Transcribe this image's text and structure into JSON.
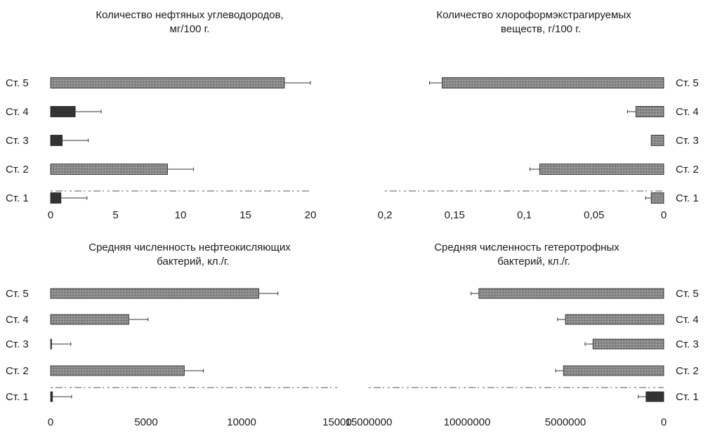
{
  "colors": {
    "bar_light": "#8c8c8c",
    "bar_dark": "#333333",
    "text": "#1a1a1a"
  },
  "chart_data": [
    {
      "type": "bar",
      "orientation": "horizontal",
      "title": "Количество нефтяных углеводородов, мг/100 г.",
      "categories": [
        "Ст. 1",
        "Ст. 2",
        "Ст. 3",
        "Ст. 4",
        "Ст. 5"
      ],
      "values": [
        0.8,
        9,
        0.9,
        1.9,
        18
      ],
      "errors": [
        2,
        2,
        2,
        2,
        2
      ],
      "xlim": [
        0,
        20
      ],
      "xticks": [
        0,
        5,
        10,
        15,
        20
      ],
      "xtick_labels": [
        "0",
        "5",
        "10",
        "15",
        "20"
      ],
      "direction": "left-to-right",
      "category_labels_side": "left"
    },
    {
      "type": "bar",
      "orientation": "horizontal",
      "title": "Количество хлороформэкстрагируемых веществ, г/100 г.",
      "categories": [
        "Ст. 1",
        "Ст. 2",
        "Ст. 3",
        "Ст. 4",
        "Ст. 5"
      ],
      "values": [
        0.009,
        0.089,
        0.009,
        0.02,
        0.159
      ],
      "errors": [
        0.004,
        0.007,
        0,
        0.006,
        0.009
      ],
      "xlim": [
        0,
        0.2
      ],
      "xticks": [
        0.2,
        0.15,
        0.1,
        0.05,
        0
      ],
      "xtick_labels": [
        "0,2",
        "0,15",
        "0,1",
        "0,05",
        "0"
      ],
      "direction": "right-to-left",
      "category_labels_side": "right"
    },
    {
      "type": "bar",
      "orientation": "horizontal",
      "title": "Средняя численность нефтеокисляющих бактерий, кл./г.",
      "categories": [
        "Ст. 1",
        "Ст. 2",
        "Ст. 3",
        "Ст. 4",
        "Ст. 5"
      ],
      "values": [
        100,
        7000,
        60,
        4100,
        10900
      ],
      "errors": [
        1000,
        1000,
        1000,
        1000,
        1000
      ],
      "xlim": [
        0,
        15000
      ],
      "xticks": [
        0,
        5000,
        10000,
        15000
      ],
      "xtick_labels": [
        "0",
        "5000",
        "10000",
        "15000"
      ],
      "direction": "left-to-right",
      "category_labels_side": "left"
    },
    {
      "type": "bar",
      "orientation": "horizontal",
      "title": "Средняя численность гетеротрофных бактерий, кл./г.",
      "categories": [
        "Ст. 1",
        "Ст. 2",
        "Ст. 3",
        "Ст. 4",
        "Ст. 5"
      ],
      "values": [
        900000,
        5100000,
        3600000,
        5000000,
        9400000
      ],
      "errors": [
        400000,
        400000,
        400000,
        400000,
        400000
      ],
      "xlim": [
        0,
        15000000
      ],
      "xticks": [
        15000000,
        10000000,
        5000000,
        0
      ],
      "xtick_labels": [
        "15000000",
        "10000000",
        "5000000",
        "0"
      ],
      "direction": "right-to-left",
      "category_labels_side": "right"
    }
  ]
}
